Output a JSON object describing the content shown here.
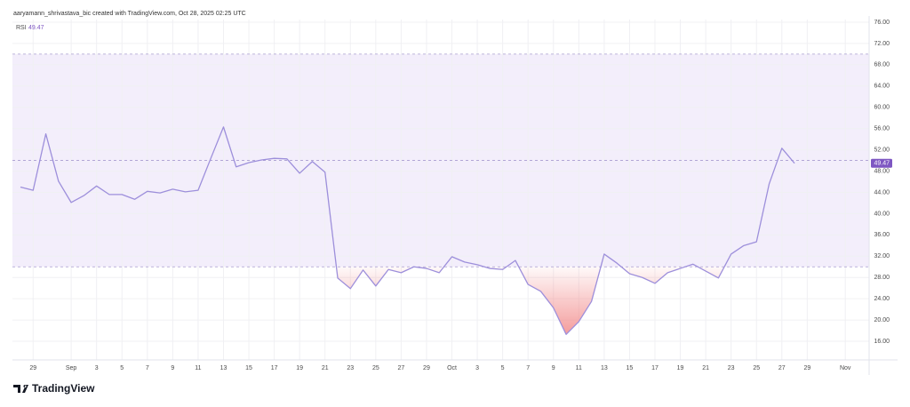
{
  "header": {
    "attribution": "aaryamann_shrivastava_bic created with TradingView.com, Oct 28, 2025 02:25 UTC"
  },
  "branding": "TradingView",
  "chart_data": {
    "type": "line",
    "categories": [
      null,
      "29",
      null,
      null,
      "Sep",
      null,
      "3",
      null,
      "5",
      null,
      "7",
      null,
      "9",
      null,
      "11",
      null,
      "13",
      null,
      "15",
      null,
      "17",
      null,
      "19",
      null,
      "21",
      null,
      "23",
      null,
      "25",
      null,
      "27",
      null,
      "29",
      null,
      "Oct",
      null,
      "3",
      null,
      "5",
      null,
      "7",
      null,
      "9",
      null,
      "11",
      null,
      "13",
      null,
      "15",
      null,
      "17",
      null,
      "19",
      null,
      "21",
      null,
      "23",
      null,
      "25",
      null,
      "27",
      null,
      "29",
      null,
      null,
      "Nov"
    ],
    "series": [
      {
        "name": "RSI",
        "color": "#9d8fdb",
        "values": [
          45.0,
          44.4,
          55.0,
          46.1,
          42.1,
          43.4,
          45.2,
          43.6,
          43.6,
          42.7,
          44.2,
          43.9,
          44.6,
          44.1,
          44.4,
          50.4,
          56.3,
          48.8,
          49.6,
          50.1,
          50.4,
          50.3,
          47.6,
          49.8,
          47.8,
          27.9,
          25.9,
          29.4,
          26.4,
          29.5,
          28.9,
          30.0,
          29.7,
          28.9,
          31.9,
          30.9,
          30.4,
          29.7,
          29.5,
          31.2,
          26.7,
          25.4,
          22.3,
          17.3,
          19.7,
          23.5,
          32.4,
          30.7,
          28.7,
          28.0,
          26.9,
          28.9,
          29.7,
          30.5,
          29.2,
          27.9,
          32.4,
          34.0,
          34.7,
          45.6,
          52.3,
          49.47,
          null,
          null,
          null,
          null
        ]
      }
    ],
    "ylim": [
      12.5,
      76.5
    ],
    "yticks": [
      {
        "value": 16,
        "label": "16.00"
      },
      {
        "value": 20,
        "label": "20.00"
      },
      {
        "value": 24,
        "label": "24.00"
      },
      {
        "value": 28,
        "label": "28.00"
      },
      {
        "value": 32,
        "label": "32.00"
      },
      {
        "value": 36,
        "label": "36.00"
      },
      {
        "value": 40,
        "label": "40.00"
      },
      {
        "value": 44,
        "label": "44.00"
      },
      {
        "value": 48,
        "label": "48.00"
      },
      {
        "value": 52,
        "label": "52.00"
      },
      {
        "value": 56,
        "label": "56.00"
      },
      {
        "value": 60,
        "label": "60.00"
      },
      {
        "value": 64,
        "label": "64.00"
      },
      {
        "value": 68,
        "label": "68.00"
      },
      {
        "value": 72,
        "label": "72.00"
      },
      {
        "value": 76,
        "label": "76.00"
      }
    ],
    "levels": [
      30,
      50,
      70
    ],
    "band_color": "#f3eefb",
    "level_color": "#a89cd0",
    "oversold_color": "#f28b8b",
    "grid": true
  }
}
